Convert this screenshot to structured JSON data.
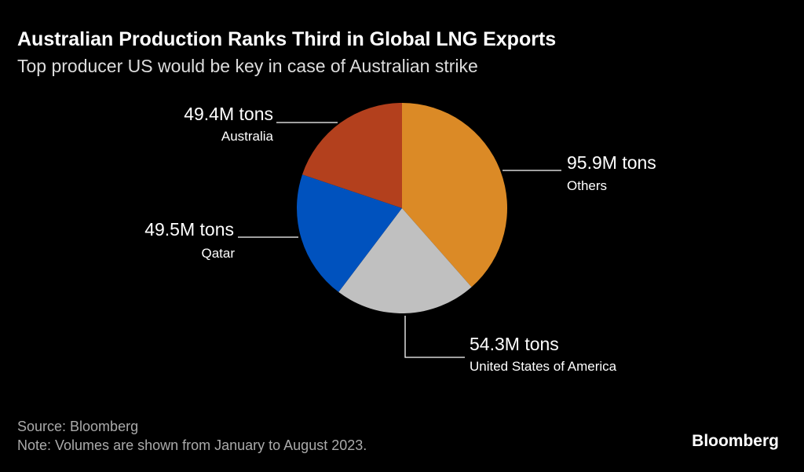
{
  "chart_data": {
    "type": "pie",
    "title": "Australian Production Ranks Third in Global LNG Exports",
    "subtitle": "Top producer US would be key in case of Australian strike",
    "unit": "M tons",
    "slices": [
      {
        "name": "Others",
        "value": 95.9,
        "label": "95.9M tons",
        "color": "#db8a26"
      },
      {
        "name": "United States of America",
        "value": 54.3,
        "label": "54.3M tons",
        "color": "#c0c0c0"
      },
      {
        "name": "Qatar",
        "value": 49.5,
        "label": "49.5M tons",
        "color": "#0052be"
      },
      {
        "name": "Australia",
        "value": 49.4,
        "label": "49.4M tons",
        "color": "#b3401d"
      }
    ],
    "start": "12 o'clock",
    "direction": "clockwise"
  },
  "footer": {
    "source": "Source: Bloomberg",
    "note": "Note: Volumes are shown from January to August 2023.",
    "logo": "Bloomberg"
  }
}
